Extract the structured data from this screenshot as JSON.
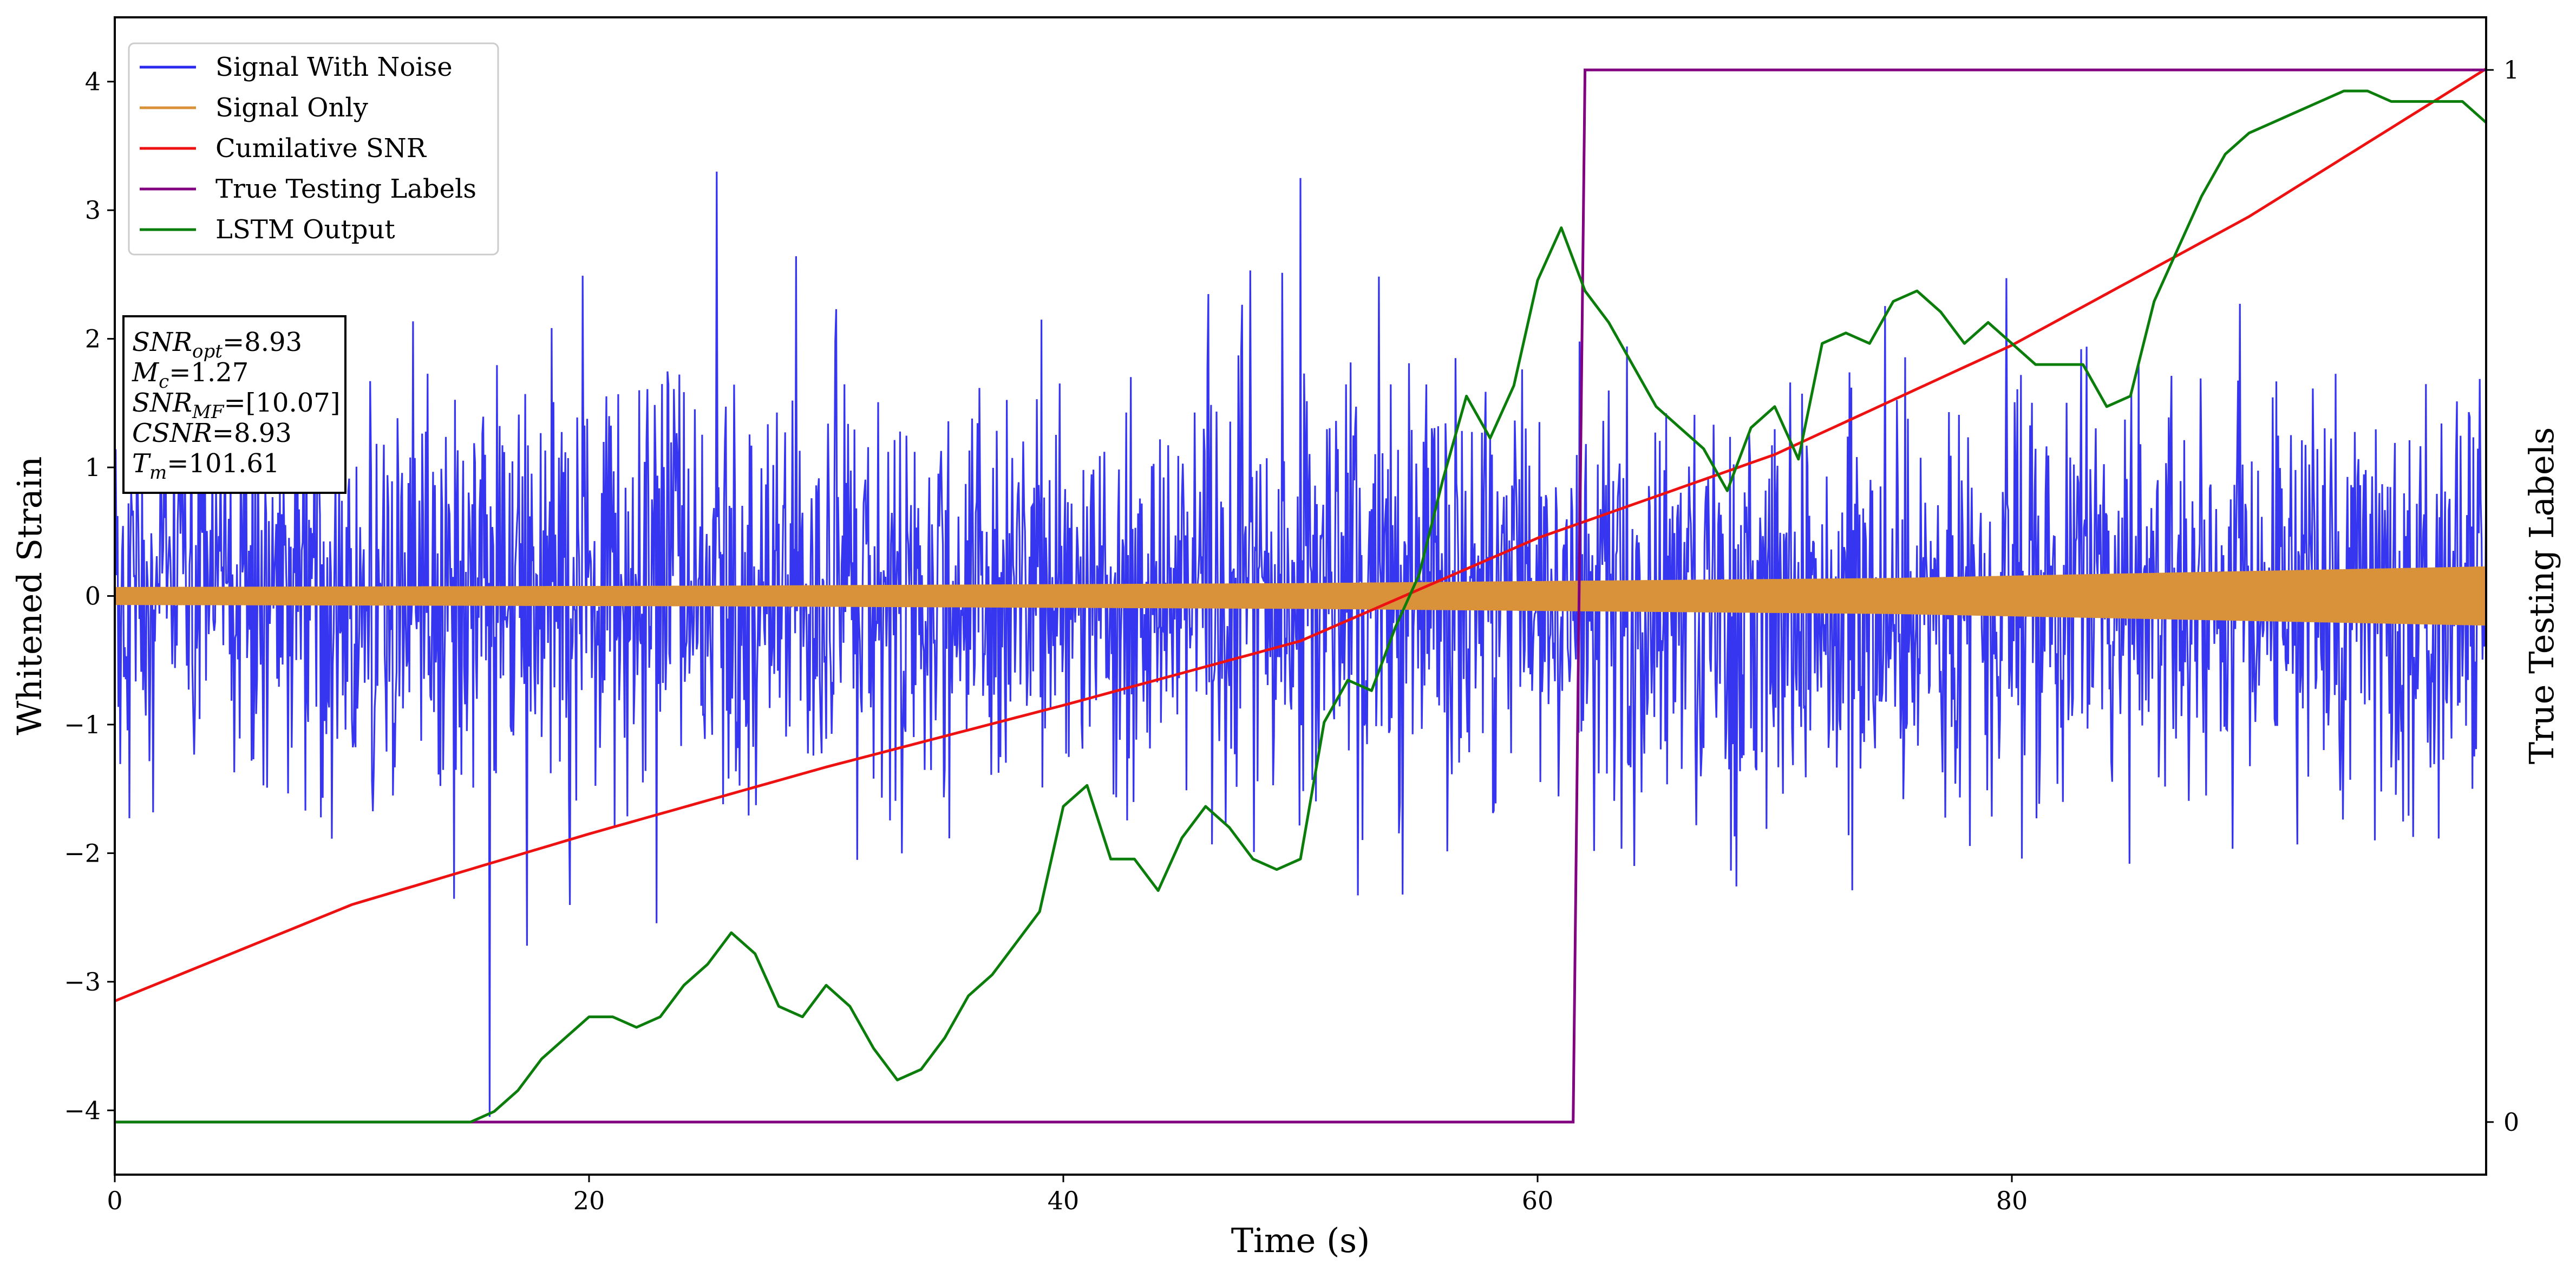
{
  "chart_data": {
    "type": "line",
    "xlabel": "Time (s)",
    "ylabel": "Whitened Strain",
    "y2label": "True Testing Labels",
    "xlim": [
      0,
      100
    ],
    "ylim": [
      -4.5,
      4.5
    ],
    "y2lim": [
      -0.05,
      1.05
    ],
    "x_ticks": [
      0,
      20,
      40,
      60,
      80
    ],
    "y_ticks": [
      -4,
      -3,
      -2,
      -1,
      0,
      1,
      2,
      3,
      4
    ],
    "y2_ticks": [
      0,
      1
    ],
    "legend_position": "top-left",
    "grid": false,
    "colors": {
      "noise": "#2b2bf0",
      "signal": "#d9913a",
      "cumulative_snr": "#ee1111",
      "labels": "#800080",
      "lstm": "#0b7d0b"
    },
    "series": [
      {
        "name": "Signal With Noise",
        "axis": "left",
        "description_values": {
          "typical_band": [
            -1.6,
            1.6
          ],
          "peak_max": 3.3,
          "peak_min": -4.05
        }
      },
      {
        "name": "Signal Only",
        "axis": "left",
        "envelope": {
          "x": [
            0,
            25,
            50,
            75,
            100
          ],
          "amplitude": [
            0.07,
            0.08,
            0.1,
            0.14,
            0.23
          ]
        }
      },
      {
        "name": "Cumilative SNR",
        "axis": "left",
        "x": [
          0,
          10,
          20,
          30,
          40,
          50,
          60,
          70,
          80,
          90,
          100
        ],
        "y": [
          -3.15,
          -2.4,
          -1.85,
          -1.33,
          -0.85,
          -0.35,
          0.45,
          1.1,
          1.95,
          2.95,
          4.1
        ]
      },
      {
        "name": "True Testing Labels",
        "axis": "right",
        "x": [
          0,
          61.5,
          62.0,
          100
        ],
        "y": [
          0,
          0,
          1,
          1
        ]
      },
      {
        "name": "LSTM Output",
        "axis": "right",
        "x": [
          0,
          15,
          16,
          17,
          18,
          19,
          20,
          21,
          22,
          23,
          24,
          25,
          26,
          27,
          28,
          29,
          30,
          31,
          32,
          33,
          34,
          35,
          36,
          37,
          38,
          39,
          40,
          41,
          42,
          43,
          44,
          45,
          46,
          47,
          48,
          49,
          50,
          51,
          52,
          53,
          54,
          55,
          56,
          57,
          58,
          59,
          60,
          61,
          62,
          63,
          64,
          65,
          66,
          67,
          68,
          69,
          70,
          71,
          72,
          73,
          74,
          75,
          76,
          77,
          78,
          79,
          80,
          81,
          82,
          83,
          84,
          85,
          86,
          87,
          88,
          89,
          90,
          91,
          92,
          93,
          94,
          95,
          96,
          97,
          98,
          99,
          100
        ],
        "y": [
          0,
          0,
          0.01,
          0.03,
          0.06,
          0.08,
          0.1,
          0.1,
          0.09,
          0.1,
          0.13,
          0.15,
          0.18,
          0.16,
          0.11,
          0.1,
          0.13,
          0.11,
          0.07,
          0.04,
          0.05,
          0.08,
          0.12,
          0.14,
          0.17,
          0.2,
          0.3,
          0.32,
          0.25,
          0.25,
          0.22,
          0.27,
          0.3,
          0.28,
          0.25,
          0.24,
          0.25,
          0.38,
          0.42,
          0.41,
          0.47,
          0.52,
          0.61,
          0.69,
          0.65,
          0.7,
          0.8,
          0.85,
          0.79,
          0.76,
          0.72,
          0.68,
          0.66,
          0.64,
          0.6,
          0.66,
          0.68,
          0.63,
          0.74,
          0.75,
          0.74,
          0.78,
          0.79,
          0.77,
          0.74,
          0.76,
          0.74,
          0.72,
          0.72,
          0.72,
          0.68,
          0.69,
          0.78,
          0.83,
          0.88,
          0.92,
          0.94,
          0.95,
          0.96,
          0.97,
          0.98,
          0.98,
          0.97,
          0.97,
          0.97,
          0.97,
          0.95
        ]
      }
    ],
    "annotation": {
      "lines": [
        {
          "sym": "SNR",
          "sub": "opt",
          "value": "=8.93"
        },
        {
          "sym": "M",
          "sub": "c",
          "value": "=1.27"
        },
        {
          "sym": "SNR",
          "sub": "MF",
          "value": "=[10.07]"
        },
        {
          "sym": "CSNR",
          "sub": "",
          "value": "=8.93"
        },
        {
          "sym": "T",
          "sub": "m",
          "value": "=101.61"
        }
      ]
    }
  }
}
